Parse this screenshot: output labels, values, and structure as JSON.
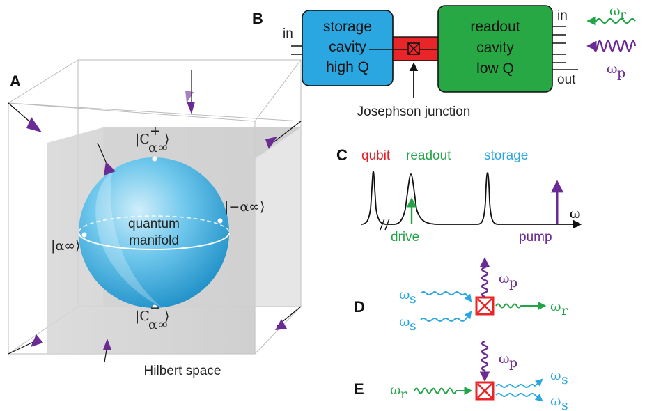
{
  "colors": {
    "storage_box": "#2aa7e1",
    "readout_box": "#27a844",
    "junction": "#e8262a",
    "readout_green": "#22a447",
    "pump_purple": "#6a2b94",
    "storage_blue": "#2aa7e1",
    "qubit_red": "#e41e26"
  },
  "panel_a": {
    "letter": "A",
    "ket_top": "|C",
    "ket_top_sup": "+",
    "ket_top_sub": "α∞",
    "ket_right": "|−α∞⟩",
    "ket_left": "|α∞⟩",
    "ket_bottom": "|C",
    "ket_bottom_sup": "−",
    "ket_bottom_sub": "α∞",
    "ket_close": "⟩",
    "sphere_label_1": "quantum",
    "sphere_label_2": "manifold",
    "caption": "Hilbert space"
  },
  "panel_b": {
    "letter": "B",
    "storage_lines": [
      "storage",
      "cavity",
      "high Q"
    ],
    "readout_lines": [
      "readout",
      "cavity",
      "low Q"
    ],
    "in_left": "in",
    "in_right": "in",
    "out_right": "out",
    "junction_label": "Josephson junction",
    "omega_r": "ω",
    "omega_r_sub": "r",
    "omega_p": "ω",
    "omega_p_sub": "p"
  },
  "panel_c": {
    "letter": "C",
    "label_qubit": "qubit",
    "label_readout": "readout",
    "label_storage": "storage",
    "label_drive": "drive",
    "label_pump": "pump",
    "axis_label": "ω"
  },
  "panel_d": {
    "letter": "D",
    "in_1": "ω",
    "in_1_sub": "s",
    "in_2": "ω",
    "in_2_sub": "s",
    "pump": "ω",
    "pump_sub": "p",
    "out": "ω",
    "out_sub": "r"
  },
  "panel_e": {
    "letter": "E",
    "in": "ω",
    "in_sub": "r",
    "pump": "ω",
    "pump_sub": "p",
    "out_1": "ω",
    "out_1_sub": "s",
    "out_2": "ω",
    "out_2_sub": "s"
  }
}
